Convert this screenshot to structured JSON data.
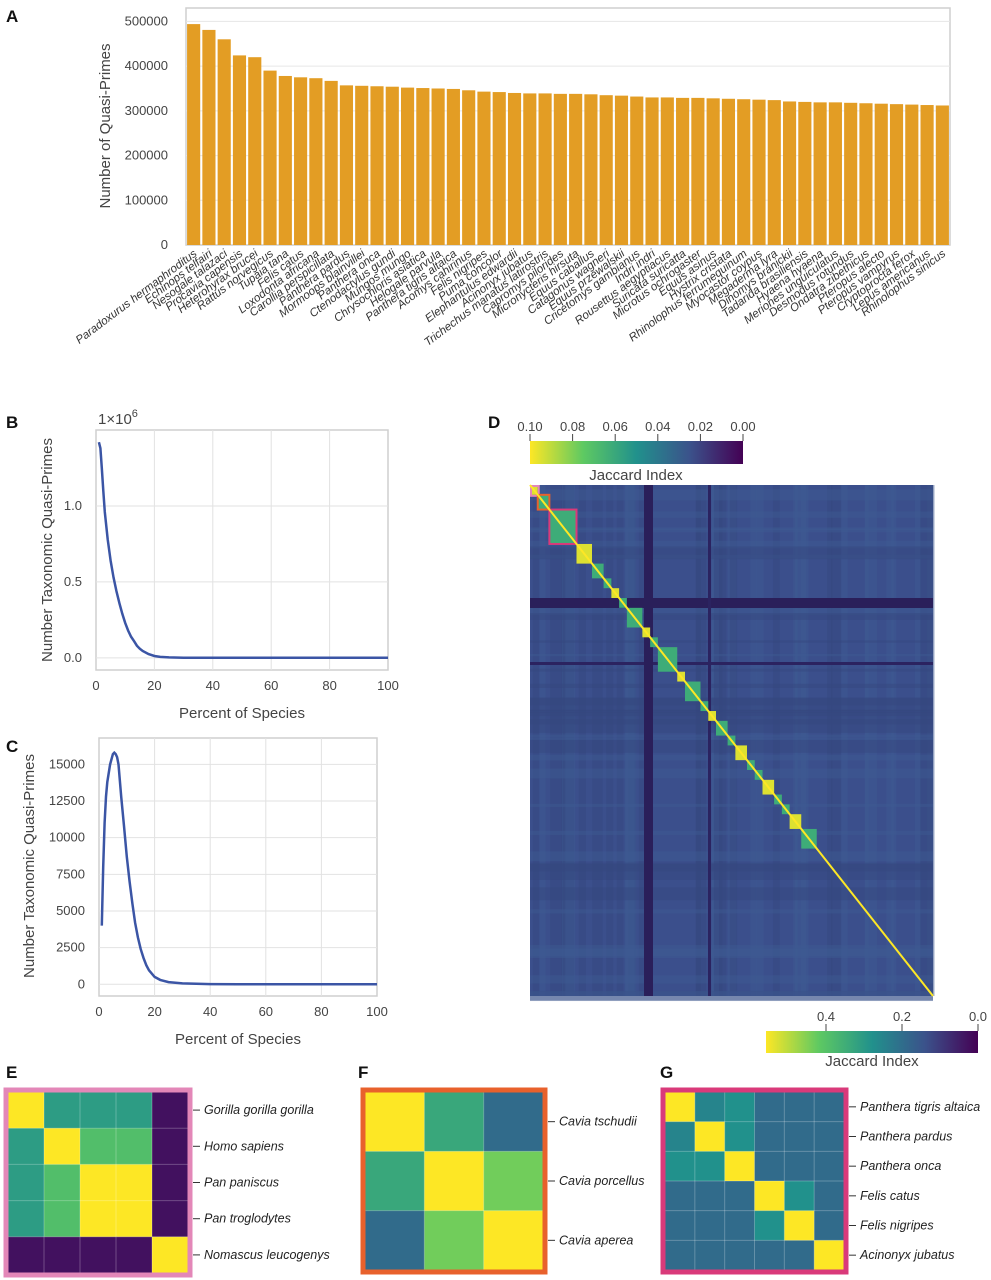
{
  "panels": {
    "A": "A",
    "B": "B",
    "C": "C",
    "D": "D",
    "E": "E",
    "F": "F",
    "G": "G"
  },
  "chart_data": [
    {
      "id": "A",
      "type": "bar",
      "title": "",
      "xlabel": "",
      "ylabel": "Number of Quasi-Primes",
      "ylim": [
        0,
        530000
      ],
      "yticks": [
        0,
        100000,
        200000,
        300000,
        400000,
        500000
      ],
      "ytick_labels": [
        "0",
        "100000",
        "200000",
        "300000",
        "400000",
        "500000"
      ],
      "bar_color": "#E39D24",
      "categories": [
        "Paradoxurus hermaphroditus",
        "Echinops telfairi",
        "Nesogale talazaci",
        "Procavia capensis",
        "Heterohyrax brucei",
        "Rattus norvegicus",
        "Tupaia tana",
        "Felis catus",
        "Loxodonta africana",
        "Carollia perspicillata",
        "Panthera pardus",
        "Mormoops blainvillei",
        "Panthera onca",
        "Ctenodactylus gundi",
        "Mungos mungo",
        "Chrysochloris asiatica",
        "Helogale parvula",
        "Panthera tigris altaica",
        "Acomys cahirinus",
        "Felis nigripes",
        "Puma concolor",
        "Elephantulus edwardii",
        "Acinonyx jubatus",
        "Trichechus manatus latirostris",
        "Capromys pilorides",
        "Micronycteris hirsuta",
        "Equus caballus",
        "Catagonus wagneri",
        "Equus przewalskii",
        "Cricetomys gambianus",
        "Indri indri",
        "Rousettus aegyptiacus",
        "Suricata suricatta",
        "Microtus ochrogaster",
        "Equus asinus",
        "Hystrix cristata",
        "Rhinolophus ferrumequinum",
        "Myocastor coypus",
        "Megaderma lyra",
        "Dinomys branickii",
        "Tadarida brasiliensis",
        "Hyaena hyaena",
        "Meriones unguiculatus",
        "Desmodus rotundus",
        "Ondatra zibethicus",
        "Pteropus alecto",
        "Pteropus vampyrus",
        "Cryptoprocta ferox",
        "Lepus americanus",
        "Rhinolophus sinicus"
      ],
      "values": [
        494000,
        481000,
        460000,
        424000,
        420000,
        390000,
        378000,
        375000,
        373000,
        367000,
        357000,
        356000,
        355000,
        354000,
        352000,
        351000,
        350000,
        349000,
        346000,
        343000,
        342000,
        340000,
        339000,
        339000,
        338000,
        338000,
        337000,
        335000,
        334000,
        332000,
        330000,
        330000,
        329000,
        329000,
        328000,
        327000,
        326000,
        325000,
        324000,
        321000,
        320000,
        319000,
        319000,
        318000,
        317000,
        316000,
        315000,
        314000,
        313000,
        312000
      ]
    },
    {
      "id": "B",
      "type": "line",
      "xlabel": "Percent of Species",
      "ylabel": "Number Taxonomic Quasi-Primes",
      "multiplier_label": "1×10",
      "multiplier_exp": "6",
      "xlim": [
        0,
        100
      ],
      "ylim": [
        -0.08,
        1.5
      ],
      "xticks": [
        0,
        20,
        40,
        60,
        80,
        100
      ],
      "yticks": [
        0.0,
        0.5,
        1.0
      ],
      "ytick_labels": [
        "0.0",
        "0.5",
        "1.0"
      ],
      "line_color": "#3B55A5",
      "x": [
        1,
        1.5,
        2,
        2.5,
        3,
        4,
        5,
        6,
        7,
        8,
        9,
        10,
        11,
        12,
        13,
        14,
        15,
        16,
        18,
        20,
        22,
        25,
        30,
        40,
        50,
        60,
        70,
        80,
        90,
        100
      ],
      "y": [
        1.42,
        1.38,
        1.25,
        1.1,
        0.96,
        0.78,
        0.64,
        0.53,
        0.44,
        0.36,
        0.29,
        0.23,
        0.18,
        0.14,
        0.11,
        0.08,
        0.06,
        0.045,
        0.025,
        0.012,
        0.006,
        0.003,
        0.001,
        0.0,
        0.0,
        0.0,
        0.0,
        0.0,
        0.0,
        0.0
      ]
    },
    {
      "id": "C",
      "type": "line",
      "xlabel": "Percent of Species",
      "ylabel": "Number Taxonomic Quasi-Primes",
      "xlim": [
        0,
        100
      ],
      "ylim": [
        -800,
        16800
      ],
      "xticks": [
        0,
        20,
        40,
        60,
        80,
        100
      ],
      "yticks": [
        0,
        2500,
        5000,
        7500,
        10000,
        12500,
        15000
      ],
      "ytick_labels": [
        "0",
        "2500",
        "5000",
        "7500",
        "10000",
        "12500",
        "15000"
      ],
      "line_color": "#3B55A5",
      "x": [
        1,
        1.5,
        2,
        2.5,
        3,
        4,
        5,
        5.5,
        6,
        6.5,
        7,
        8,
        9,
        10,
        11,
        12,
        13,
        14,
        15,
        16,
        17,
        18,
        20,
        22,
        25,
        30,
        35,
        40,
        50,
        60,
        70,
        80,
        90,
        100
      ],
      "y": [
        4000,
        8000,
        11000,
        12800,
        13800,
        15000,
        15700,
        15800,
        15700,
        15500,
        15000,
        12800,
        10800,
        8700,
        7000,
        5500,
        4200,
        3200,
        2400,
        1800,
        1300,
        950,
        500,
        300,
        150,
        60,
        30,
        10,
        5,
        0,
        0,
        0,
        0,
        0
      ]
    },
    {
      "id": "D",
      "type": "heatmap",
      "title": "",
      "colorbar_top": {
        "label": "Jaccard Index",
        "tick_labels": [
          "0.10",
          "0.08",
          "0.06",
          "0.04",
          "0.02",
          "0.00"
        ]
      },
      "colorbar_bottom": {
        "label": "Jaccard Index",
        "tick_labels": [
          "0.4",
          "0.2",
          "0.0"
        ]
      },
      "block_sizes": [
        2,
        3,
        7,
        4,
        3,
        2,
        2,
        2,
        4,
        2,
        2,
        5,
        2,
        4,
        2,
        2,
        3,
        2,
        3,
        2,
        2,
        3,
        2,
        2,
        3,
        4
      ],
      "block_value": 1.0,
      "off_block_value": 0.1
    },
    {
      "id": "E",
      "type": "heatmap",
      "labels": [
        "Gorilla gorilla gorilla",
        "Homo sapiens",
        "Pan paniscus",
        "Pan troglodytes",
        "Nomascus leucogenys"
      ],
      "frame_color": "#E387B8",
      "matrix": [
        [
          1.0,
          0.55,
          0.55,
          0.55,
          0.05
        ],
        [
          0.55,
          1.0,
          0.7,
          0.7,
          0.05
        ],
        [
          0.55,
          0.7,
          1.0,
          1.0,
          0.05
        ],
        [
          0.55,
          0.7,
          1.0,
          1.0,
          0.05
        ],
        [
          0.05,
          0.05,
          0.05,
          0.05,
          1.0
        ]
      ]
    },
    {
      "id": "F",
      "type": "heatmap",
      "labels": [
        "Cavia tschudii",
        "Cavia porcellus",
        "Cavia aperea"
      ],
      "frame_color": "#E8612C",
      "matrix": [
        [
          1.0,
          0.6,
          0.35
        ],
        [
          0.6,
          1.0,
          0.78
        ],
        [
          0.35,
          0.78,
          1.0
        ]
      ]
    },
    {
      "id": "G",
      "type": "heatmap",
      "labels": [
        "Panthera tigris altaica",
        "Panthera pardus",
        "Panthera onca",
        "Felis catus",
        "Felis nigripes",
        "Acinonyx jubatus"
      ],
      "frame_color": "#D93A7A",
      "matrix": [
        [
          1.0,
          0.45,
          0.5,
          0.35,
          0.35,
          0.35
        ],
        [
          0.45,
          1.0,
          0.5,
          0.35,
          0.35,
          0.35
        ],
        [
          0.5,
          0.5,
          1.0,
          0.35,
          0.35,
          0.35
        ],
        [
          0.35,
          0.35,
          0.35,
          1.0,
          0.5,
          0.35
        ],
        [
          0.35,
          0.35,
          0.35,
          0.5,
          1.0,
          0.35
        ],
        [
          0.35,
          0.35,
          0.35,
          0.35,
          0.35,
          1.0
        ]
      ]
    }
  ]
}
